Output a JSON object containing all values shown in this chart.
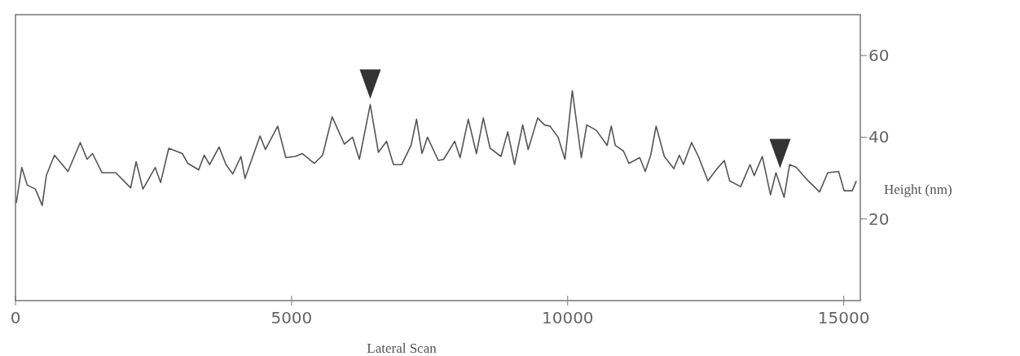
{
  "chart_data": {
    "type": "line",
    "xlabel": "Lateral Scan",
    "ylabel": "Height (nm)",
    "xlim": [
      0,
      15300
    ],
    "ylim": [
      0,
      70
    ],
    "xticks": [
      0,
      5000,
      10000,
      15000
    ],
    "yticks": [
      20,
      40,
      60
    ],
    "grid": false,
    "series": [
      {
        "color": "#555555",
        "marker": "none",
        "x": [
          15,
          114,
          212,
          360,
          484,
          558,
          706,
          951,
          1173,
          1297,
          1396,
          1568,
          1815,
          2086,
          2185,
          2308,
          2530,
          2628,
          2776,
          3022,
          3121,
          3318,
          3417,
          3516,
          3688,
          3812,
          3935,
          4083,
          4157,
          4428,
          4527,
          4749,
          4896,
          5069,
          5192,
          5414,
          5562,
          5735,
          5957,
          6105,
          6228,
          6425,
          6572,
          6720,
          6845,
          6993,
          7164,
          7263,
          7362,
          7461,
          7658,
          7756,
          7954,
          8052,
          8200,
          8348,
          8472,
          8595,
          8792,
          8915,
          9038,
          9186,
          9285,
          9457,
          9581,
          9680,
          9827,
          9951,
          10084,
          10247,
          10345,
          10518,
          10715,
          10789,
          10863,
          11011,
          11109,
          11306,
          11405,
          11504,
          11602,
          11750,
          11923,
          12022,
          12096,
          12244,
          12367,
          12540,
          12688,
          12836,
          12934,
          13132,
          13303,
          13377,
          13525,
          13673,
          13772,
          13920,
          14019,
          14142,
          14314,
          14562,
          14710,
          14907,
          15006,
          15154,
          15228
        ],
        "values": [
          23.9,
          32.6,
          28.3,
          27.3,
          23.3,
          30.6,
          35.6,
          31.6,
          38.7,
          34.6,
          36.0,
          31.3,
          31.3,
          27.6,
          34.0,
          27.3,
          32.6,
          28.9,
          37.3,
          36.0,
          33.6,
          32.0,
          35.6,
          33.3,
          37.6,
          33.3,
          31.0,
          35.3,
          29.9,
          40.3,
          37.0,
          42.7,
          35.0,
          35.3,
          36.0,
          33.6,
          35.6,
          45.0,
          38.3,
          40.0,
          34.6,
          48.0,
          36.3,
          39.0,
          33.3,
          33.3,
          38.0,
          44.4,
          36.0,
          40.0,
          34.3,
          34.6,
          39.0,
          35.0,
          44.4,
          36.0,
          44.7,
          37.3,
          35.3,
          41.3,
          33.3,
          43.0,
          37.0,
          44.7,
          43.0,
          42.7,
          40.0,
          34.6,
          51.4,
          35.0,
          43.0,
          41.7,
          38.0,
          42.7,
          38.0,
          36.6,
          33.6,
          35.0,
          31.6,
          35.6,
          42.7,
          35.3,
          32.3,
          35.6,
          33.3,
          38.7,
          35.3,
          29.3,
          32.0,
          34.3,
          29.3,
          27.9,
          33.3,
          30.6,
          35.3,
          25.9,
          31.3,
          25.3,
          33.3,
          32.6,
          29.9,
          26.6,
          31.3,
          31.6,
          26.9,
          26.9,
          29.3
        ]
      },
      {
        "type": "scatter",
        "color": "#333333",
        "marker": "triangle",
        "x": [
          6425,
          13846
        ],
        "values": [
          53,
          36
        ]
      }
    ]
  }
}
